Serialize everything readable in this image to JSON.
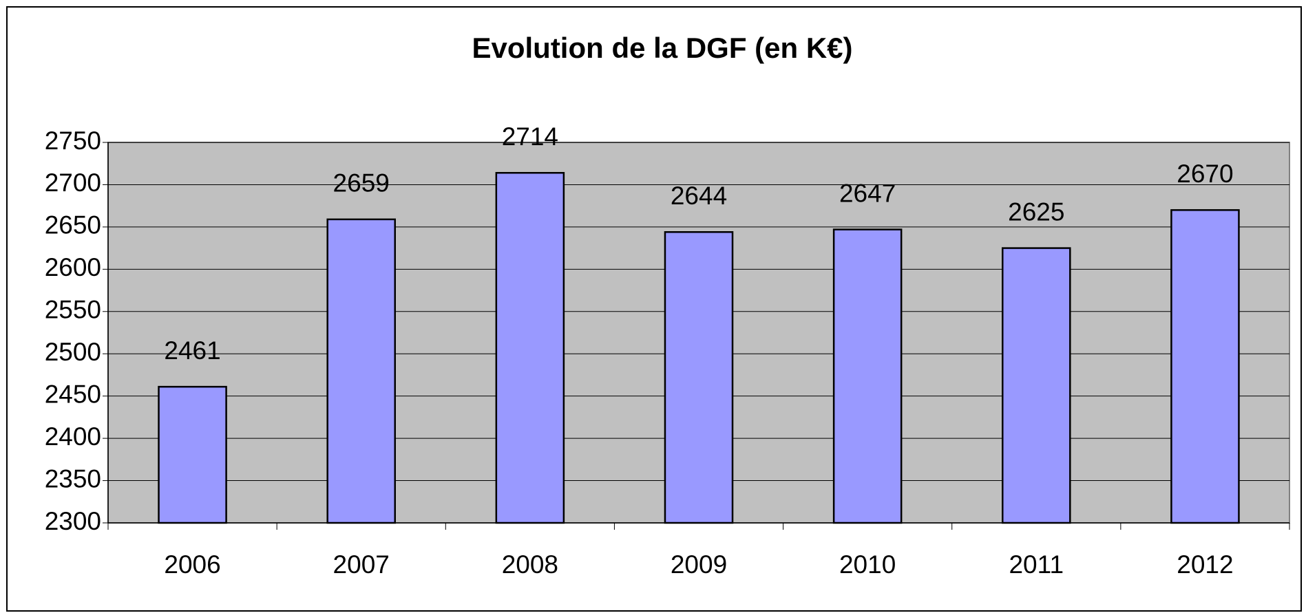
{
  "chart_data": {
    "type": "bar",
    "title": "Evolution de la DGF (en K€)",
    "categories": [
      "2006",
      "2007",
      "2008",
      "2009",
      "2010",
      "2011",
      "2012"
    ],
    "values": [
      2461,
      2659,
      2714,
      2644,
      2647,
      2625,
      2670
    ],
    "color": "#9999ff",
    "plot_background": "#c0c0c0",
    "ylim": [
      2300,
      2750
    ],
    "yticks": [
      2300,
      2350,
      2400,
      2450,
      2500,
      2550,
      2600,
      2650,
      2700,
      2750
    ],
    "grid": true
  }
}
